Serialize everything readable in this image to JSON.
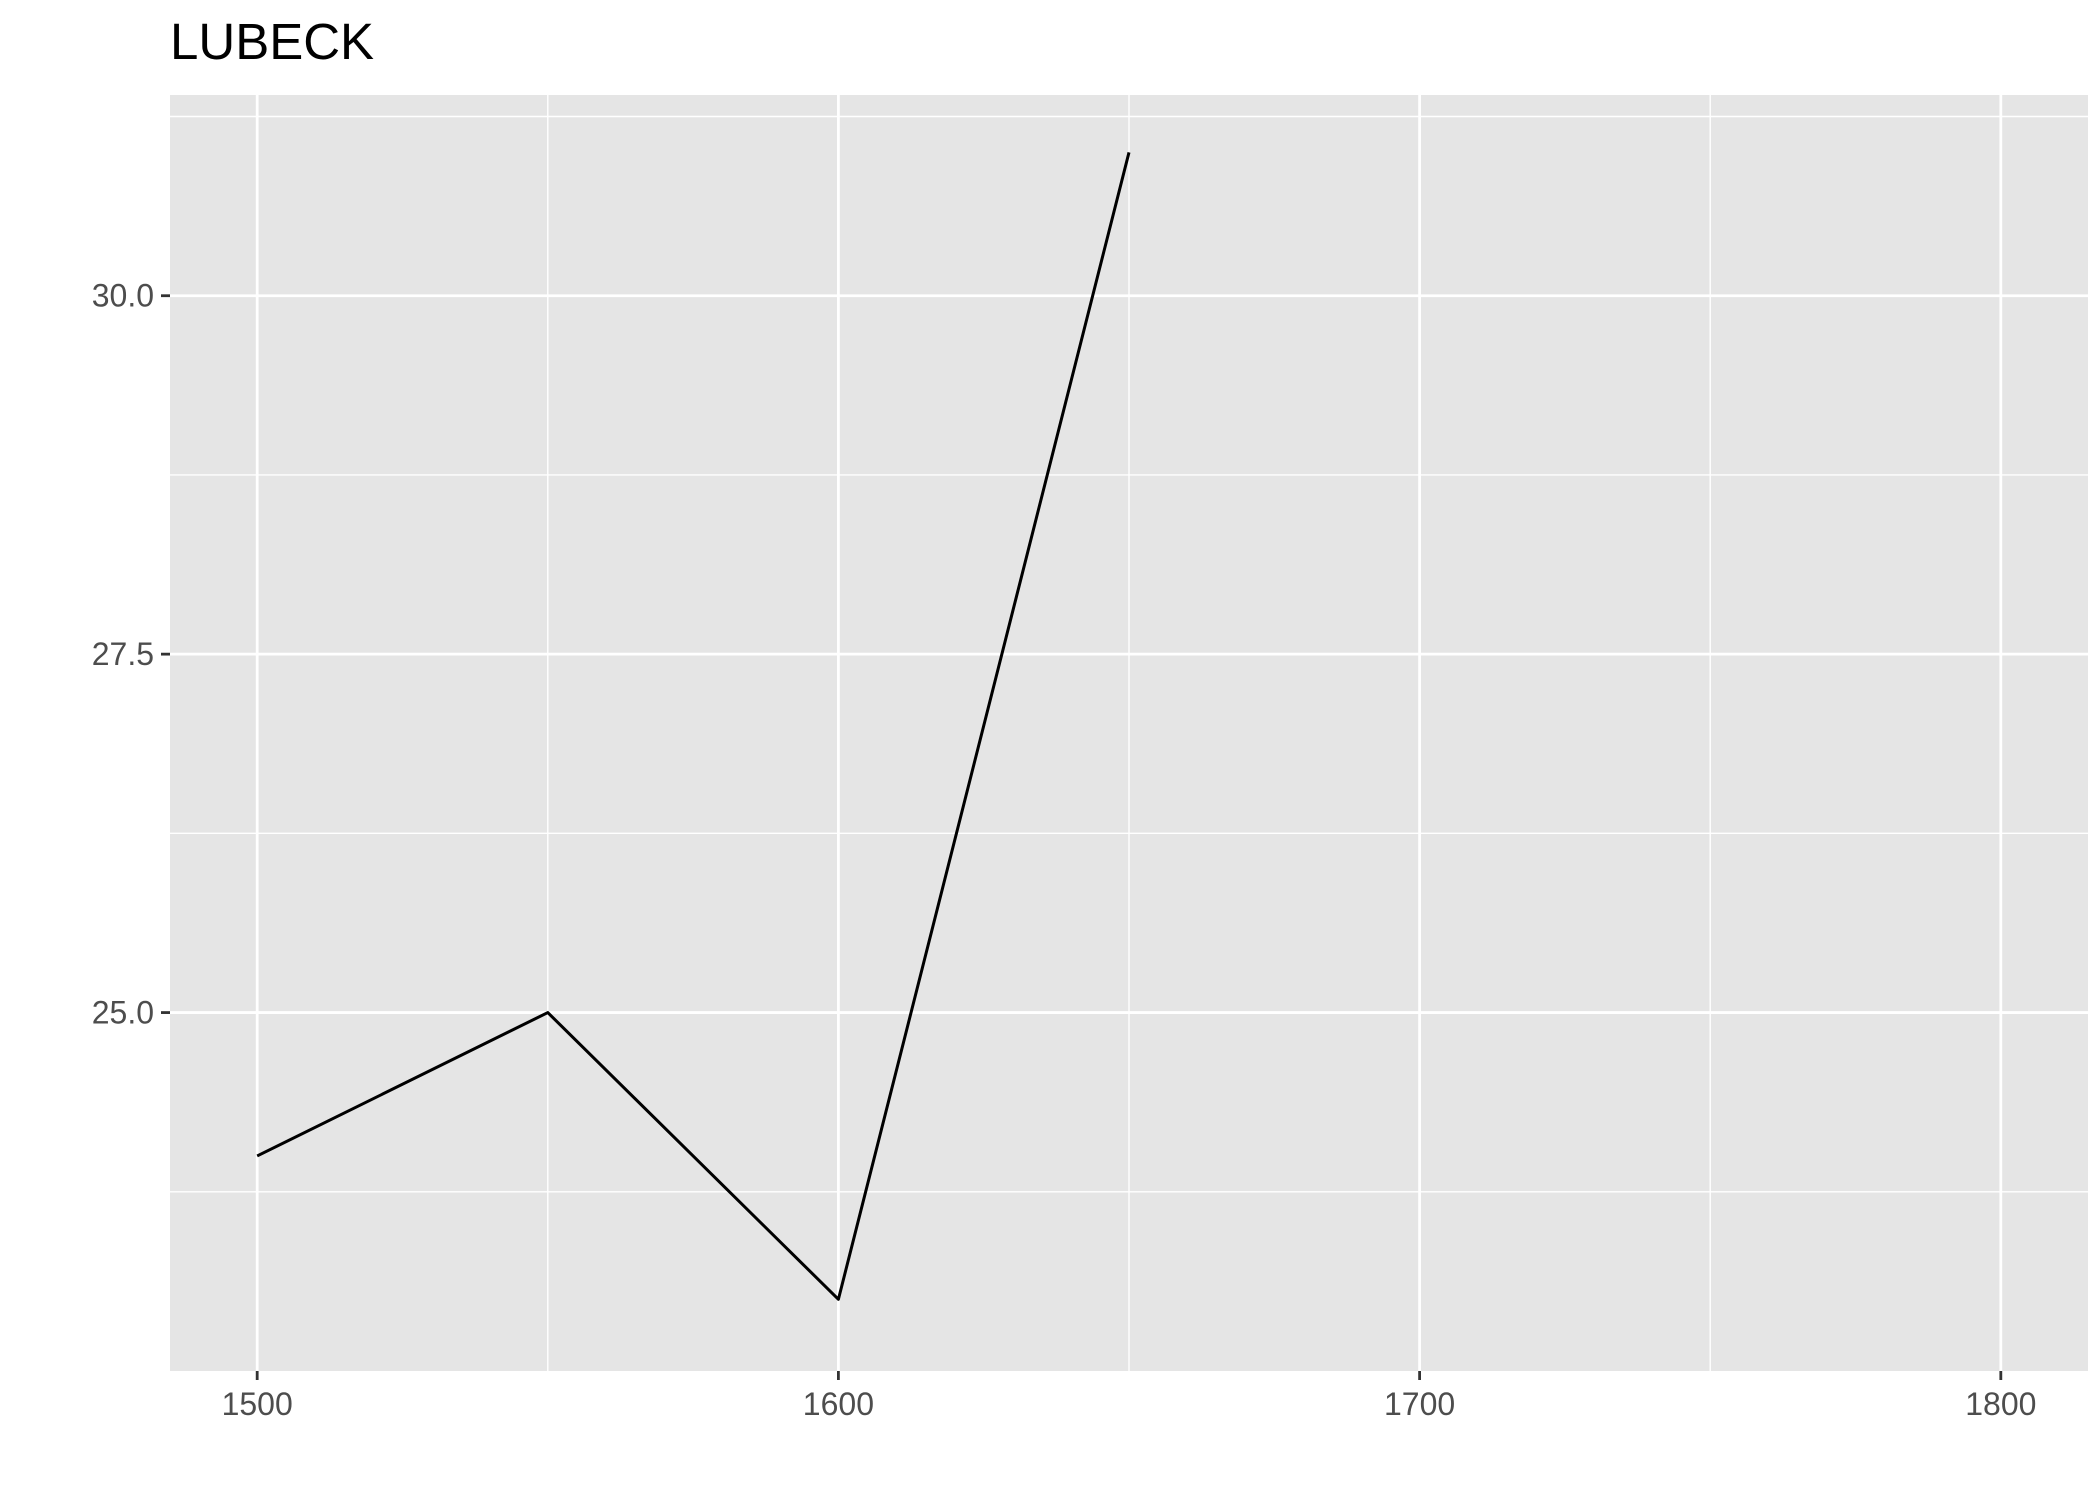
{
  "chart_data": {
    "type": "line",
    "title": "LUBECK",
    "xlabel": "",
    "ylabel": "",
    "x": [
      1500,
      1550,
      1600,
      1650
    ],
    "series": [
      {
        "values": [
          24.0,
          25.0,
          23.0,
          31.0
        ]
      }
    ],
    "xlim": [
      1485,
      1815
    ],
    "ylim": [
      22.5,
      31.4
    ],
    "xticks": [
      1500,
      1600,
      1700,
      1800
    ],
    "xtick_labels": [
      "1500",
      "1600",
      "1700",
      "1800"
    ],
    "yticks": [
      25.0,
      27.5,
      30.0
    ],
    "ytick_labels": [
      "25.0",
      "27.5",
      "30.0"
    ],
    "grid": true,
    "colors": {
      "panel": "#e5e5e5",
      "grid": "#ffffff",
      "line": "#000000",
      "tick_text": "#4d4d4d"
    }
  }
}
